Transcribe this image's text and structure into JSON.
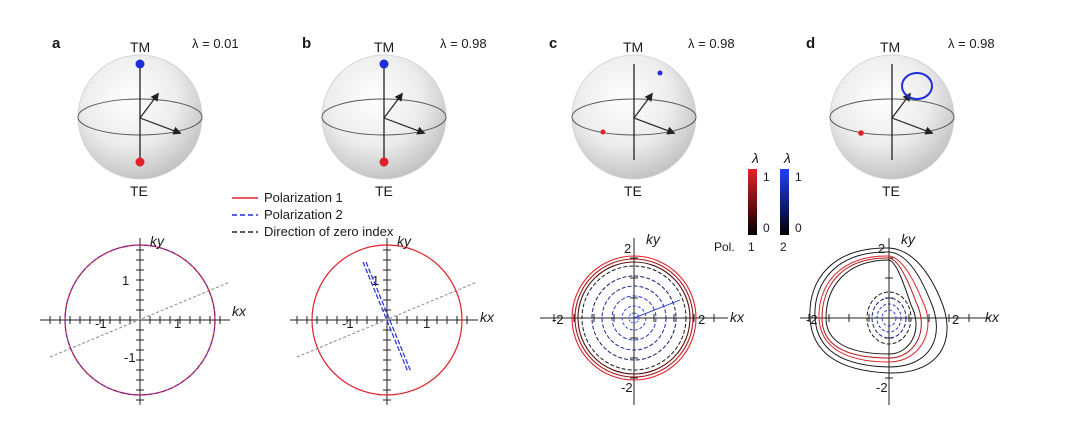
{
  "panels": [
    {
      "letter": "a",
      "top_pole": "TM",
      "bottom_pole": "TE",
      "lambda_label": "λ = 0.01"
    },
    {
      "letter": "b",
      "top_pole": "TM",
      "bottom_pole": "TE",
      "lambda_label": "λ = 0.98"
    },
    {
      "letter": "c",
      "top_pole": "TM",
      "bottom_pole": "TE",
      "lambda_label": "λ = 0.98"
    },
    {
      "letter": "d",
      "top_pole": "TM",
      "bottom_pole": "TE",
      "lambda_label": "λ = 0.98"
    }
  ],
  "legend": {
    "items": [
      {
        "label": "Polarization 1",
        "color": "#e0202a",
        "style": "solid"
      },
      {
        "label": "Polarization 2",
        "color": "#2030d8",
        "style": "dashed"
      },
      {
        "label": "Direction of zero index",
        "color": "#222222",
        "style": "dashed"
      }
    ]
  },
  "plots": [
    {
      "xlabel": "kx",
      "ylabel": "ky",
      "x_ticks": [
        "-1",
        "1"
      ],
      "y_ticks": [
        "1",
        "-1"
      ]
    },
    {
      "xlabel": "kx",
      "ylabel": "ky",
      "x_ticks": [
        "-1",
        "1"
      ],
      "y_ticks": [
        "1"
      ]
    },
    {
      "xlabel": "kx",
      "ylabel": "ky",
      "x_ticks": [
        "-2",
        "2"
      ],
      "y_ticks": [
        "2",
        "-2"
      ]
    },
    {
      "xlabel": "kx",
      "ylabel": "ky",
      "x_ticks": [
        "-2",
        "2"
      ],
      "y_ticks": [
        "2",
        "-2"
      ]
    }
  ],
  "colorbars": {
    "title": "λ",
    "red": {
      "max": "1",
      "min": "0",
      "color_top": "#e8202a",
      "color_bottom": "#000000"
    },
    "blue": {
      "max": "1",
      "min": "0",
      "color_top": "#2040ff",
      "color_bottom": "#000000"
    },
    "pol_label": "Pol.",
    "pol_values": [
      "1",
      "2"
    ]
  },
  "colors": {
    "red": "#e0202a",
    "blue": "#1f2fd8",
    "purple": "#7a2a9a",
    "gray": "#888888"
  }
}
